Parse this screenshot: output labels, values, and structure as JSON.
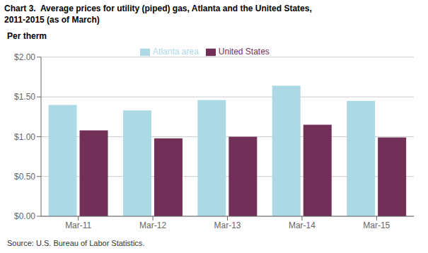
{
  "chart_data": {
    "type": "bar",
    "title": "Chart 3.  Average prices for utility (piped) gas, Atlanta and the United States,",
    "subtitle": "2011-2015 (as of March)",
    "ylabel": "Per therm",
    "annotations": [
      "Source: U.S. Bureau of Labor Statistics."
    ],
    "categories": [
      "Mar-11",
      "Mar-12",
      "Mar-13",
      "Mar-14",
      "Mar-15"
    ],
    "series": [
      {
        "name": "Atlanta area",
        "color": "#ADD8E6",
        "values": [
          1.4,
          1.33,
          1.46,
          1.64,
          1.45
        ]
      },
      {
        "name": "United States",
        "color": "#722F57",
        "values": [
          1.08,
          0.98,
          1.0,
          1.15,
          0.99
        ]
      }
    ],
    "ylim": [
      0.0,
      2.0
    ],
    "yticks": [
      {
        "value": 0.0,
        "label": "$0.00"
      },
      {
        "value": 0.5,
        "label": "$0.50"
      },
      {
        "value": 1.0,
        "label": "$1.00"
      },
      {
        "value": 1.5,
        "label": "$1.50"
      },
      {
        "value": 2.0,
        "label": "$2.00"
      }
    ],
    "grid": true,
    "legend": "top"
  }
}
